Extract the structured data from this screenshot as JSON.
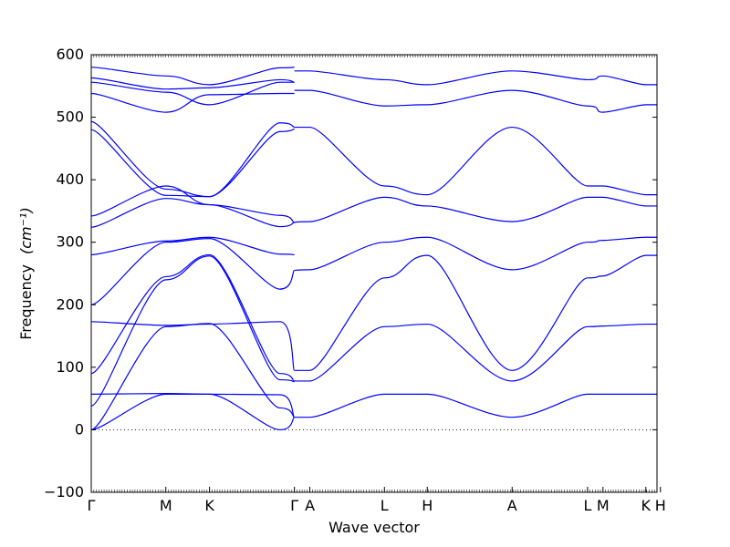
{
  "chart_data": {
    "type": "line",
    "title": "",
    "xlabel": "Wave vector",
    "ylabel_text": "Frequency",
    "ylabel_unit": "(cm⁻¹)",
    "ylim": [
      -100,
      600
    ],
    "yticks": [
      -100,
      0,
      100,
      200,
      300,
      400,
      500,
      600
    ],
    "xlim": [
      0,
      6.6
    ],
    "zero_line": true,
    "grid": false,
    "line_color": "#0000ff",
    "high_symmetry_points": [
      {
        "label": "Γ",
        "x": 0.0
      },
      {
        "label": "M",
        "x": 0.87
      },
      {
        "label": "K",
        "x": 1.38
      },
      {
        "label": "Γ",
        "x": 2.37
      },
      {
        "label": "A",
        "x": 2.55
      },
      {
        "label": "L",
        "x": 3.42
      },
      {
        "label": "H",
        "x": 3.92
      },
      {
        "label": "A",
        "x": 4.91
      },
      {
        "label": "L",
        "x": 5.79
      },
      {
        "label": "M",
        "x": 5.97
      },
      {
        "label": "K",
        "x": 6.47
      },
      {
        "label": "H",
        "x": 6.64
      }
    ],
    "series": [
      {
        "x": [
          0,
          0.87,
          1.38,
          2.2,
          2.37
        ],
        "y": [
          580,
          566,
          552,
          579,
          580
        ]
      },
      {
        "x": [
          0,
          0.87,
          1.38,
          2.2,
          2.37
        ],
        "y": [
          563,
          545,
          547,
          560,
          556
        ]
      },
      {
        "x": [
          0,
          0.87,
          1.38,
          2.2,
          2.37
        ],
        "y": [
          556,
          540,
          520,
          556,
          556
        ]
      },
      {
        "x": [
          0,
          0.87,
          1.38,
          2.2,
          2.37
        ],
        "y": [
          538,
          508,
          536,
          538,
          538
        ]
      },
      {
        "x": [
          2.37,
          2.55,
          3.42,
          3.92,
          4.91,
          5.79,
          5.97,
          6.47,
          6.64
        ],
        "y": [
          574,
          574,
          560,
          552,
          574,
          560,
          566,
          552,
          552
        ]
      },
      {
        "x": [
          2.37,
          2.55,
          3.42,
          3.92,
          4.91,
          5.79,
          5.97,
          6.47,
          6.64
        ],
        "y": [
          543,
          543,
          518,
          520,
          543,
          518,
          508,
          520,
          520
        ]
      },
      {
        "x": [
          0,
          0.87,
          1.38,
          2.2,
          2.37
        ],
        "y": [
          493,
          385,
          373,
          491,
          484
        ]
      },
      {
        "x": [
          0,
          0.87,
          1.38,
          2.2,
          2.37
        ],
        "y": [
          480,
          375,
          373,
          477,
          481
        ]
      },
      {
        "x": [
          0,
          0.87,
          1.38,
          2.2,
          2.37
        ],
        "y": [
          342,
          390,
          360,
          343,
          331
        ]
      },
      {
        "x": [
          0,
          0.87,
          1.38,
          2.2,
          2.37
        ],
        "y": [
          324,
          370,
          360,
          325,
          332
        ]
      },
      {
        "x": [
          2.37,
          2.55,
          3.42,
          3.92,
          4.91,
          5.79,
          5.97,
          6.47,
          6.64
        ],
        "y": [
          484,
          484,
          390,
          376,
          484,
          390,
          390,
          376,
          376
        ]
      },
      {
        "x": [
          2.37,
          2.55,
          3.42,
          3.92,
          4.91,
          5.79,
          5.97,
          6.47,
          6.64
        ],
        "y": [
          332,
          333,
          372,
          358,
          333,
          372,
          372,
          358,
          358
        ]
      },
      {
        "x": [
          0,
          0.87,
          1.38,
          2.2,
          2.37
        ],
        "y": [
          280,
          302,
          308,
          281,
          280
        ]
      },
      {
        "x": [
          0,
          0.87,
          1.38,
          2.2,
          2.37
        ],
        "y": [
          200,
          300,
          306,
          225,
          255
        ]
      },
      {
        "x": [
          2.37,
          2.55,
          3.42,
          3.92,
          4.91,
          5.79,
          5.97,
          6.47,
          6.64
        ],
        "y": [
          255,
          256,
          300,
          308,
          256,
          300,
          303,
          308,
          308
        ]
      },
      {
        "x": [
          0,
          0.87,
          1.38,
          2.2,
          2.37
        ],
        "y": [
          173,
          167,
          169,
          173,
          95
        ]
      },
      {
        "x": [
          0,
          0.87,
          1.38,
          2.2,
          2.37
        ],
        "y": [
          90,
          245,
          280,
          90,
          78
        ]
      },
      {
        "x": [
          0,
          0.87,
          1.38,
          2.2,
          2.37
        ],
        "y": [
          38,
          240,
          278,
          80,
          77
        ]
      },
      {
        "x": [
          2.37,
          2.55,
          3.42,
          3.92,
          4.91,
          5.79,
          5.97,
          6.47,
          6.64
        ],
        "y": [
          95,
          95,
          243,
          279,
          95,
          243,
          246,
          279,
          279
        ]
      },
      {
        "x": [
          2.37,
          2.55,
          3.42,
          3.92,
          4.91,
          5.79,
          5.97,
          6.47,
          6.64
        ],
        "y": [
          78,
          78,
          165,
          169,
          78,
          165,
          166,
          169,
          169
        ]
      },
      {
        "x": [
          0,
          0.87,
          1.38,
          2.2,
          2.37
        ],
        "y": [
          57,
          58,
          57,
          56,
          20
        ]
      },
      {
        "x": [
          0,
          0.87,
          1.38,
          2.2,
          2.37
        ],
        "y": [
          0,
          165,
          170,
          35,
          20
        ]
      },
      {
        "x": [
          0,
          0.87,
          1.38,
          2.2,
          2.37
        ],
        "y": [
          0,
          57,
          57,
          0,
          20
        ]
      },
      {
        "x": [
          2.37,
          2.55,
          3.42,
          3.92,
          4.91,
          5.79,
          5.97,
          6.47,
          6.64
        ],
        "y": [
          20,
          20,
          57,
          57,
          20,
          57,
          57,
          57,
          57
        ]
      }
    ]
  }
}
